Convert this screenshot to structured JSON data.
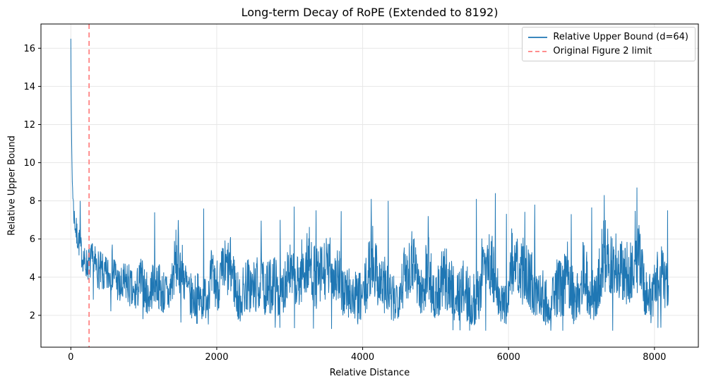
{
  "chart_data": {
    "type": "line",
    "title": "Long-term Decay of RoPE (Extended to 8192)",
    "xlabel": "Relative Distance",
    "ylabel": "Relative Upper Bound",
    "xlim": [
      -409.6,
      8601.6
    ],
    "ylim": [
      0.33,
      17.27
    ],
    "xticks": [
      0,
      2000,
      4000,
      6000,
      8000
    ],
    "yticks": [
      2,
      4,
      6,
      8,
      10,
      12,
      14,
      16
    ],
    "grid": true,
    "grid_color": "#e7e7e7",
    "axis_color": "#000000",
    "background_color": "#ffffff",
    "legend": {
      "position": "upper-right",
      "entries": [
        {
          "label": "Relative Upper Bound (d=64)",
          "color": "#1f77b4",
          "style": "solid"
        },
        {
          "label": "Original Figure 2 limit",
          "color": "#ff7f7f",
          "style": "dashed"
        }
      ]
    },
    "series": [
      {
        "name": "Relative Upper Bound (d=64)",
        "type": "noisy-line",
        "color": "#1f77b4",
        "line_width": 1,
        "x_start": 0,
        "x_end": 8192,
        "n_points": 2048,
        "start_value": 16.5,
        "envelope_anchors": [
          [
            0,
            16.5,
            16.5
          ],
          [
            8,
            13.0,
            11.0
          ],
          [
            20,
            10.3,
            8.6
          ],
          [
            40,
            8.9,
            6.6
          ],
          [
            80,
            7.8,
            5.0
          ],
          [
            150,
            7.0,
            4.1
          ],
          [
            250,
            6.5,
            3.3
          ],
          [
            400,
            6.3,
            2.7
          ],
          [
            700,
            6.2,
            2.1
          ],
          [
            1100,
            6.6,
            1.9
          ],
          [
            1700,
            6.8,
            1.7
          ],
          [
            2500,
            6.9,
            1.5
          ],
          [
            3500,
            7.1,
            1.4
          ],
          [
            4500,
            7.0,
            1.4
          ],
          [
            5500,
            7.1,
            1.3
          ],
          [
            6500,
            7.1,
            1.3
          ],
          [
            7500,
            7.2,
            1.3
          ],
          [
            8192,
            7.3,
            1.5
          ]
        ],
        "peaks": [
          [
            130,
            8.0
          ],
          [
            1150,
            7.4
          ],
          [
            1820,
            7.6
          ],
          [
            2870,
            7.0
          ],
          [
            3060,
            7.7
          ],
          [
            3360,
            7.5
          ],
          [
            4120,
            8.1
          ],
          [
            4350,
            8.0
          ],
          [
            4900,
            7.2
          ],
          [
            5560,
            8.1
          ],
          [
            5820,
            8.4
          ],
          [
            6360,
            7.8
          ],
          [
            6860,
            7.3
          ],
          [
            7310,
            8.3
          ],
          [
            7760,
            8.7
          ],
          [
            8180,
            7.5
          ]
        ],
        "noise_seed": 7
      },
      {
        "name": "Original Figure 2 limit",
        "type": "vline",
        "x": 250,
        "color": "#ff7f7f",
        "line_width": 1.7,
        "dash": [
          7,
          5
        ]
      }
    ]
  }
}
